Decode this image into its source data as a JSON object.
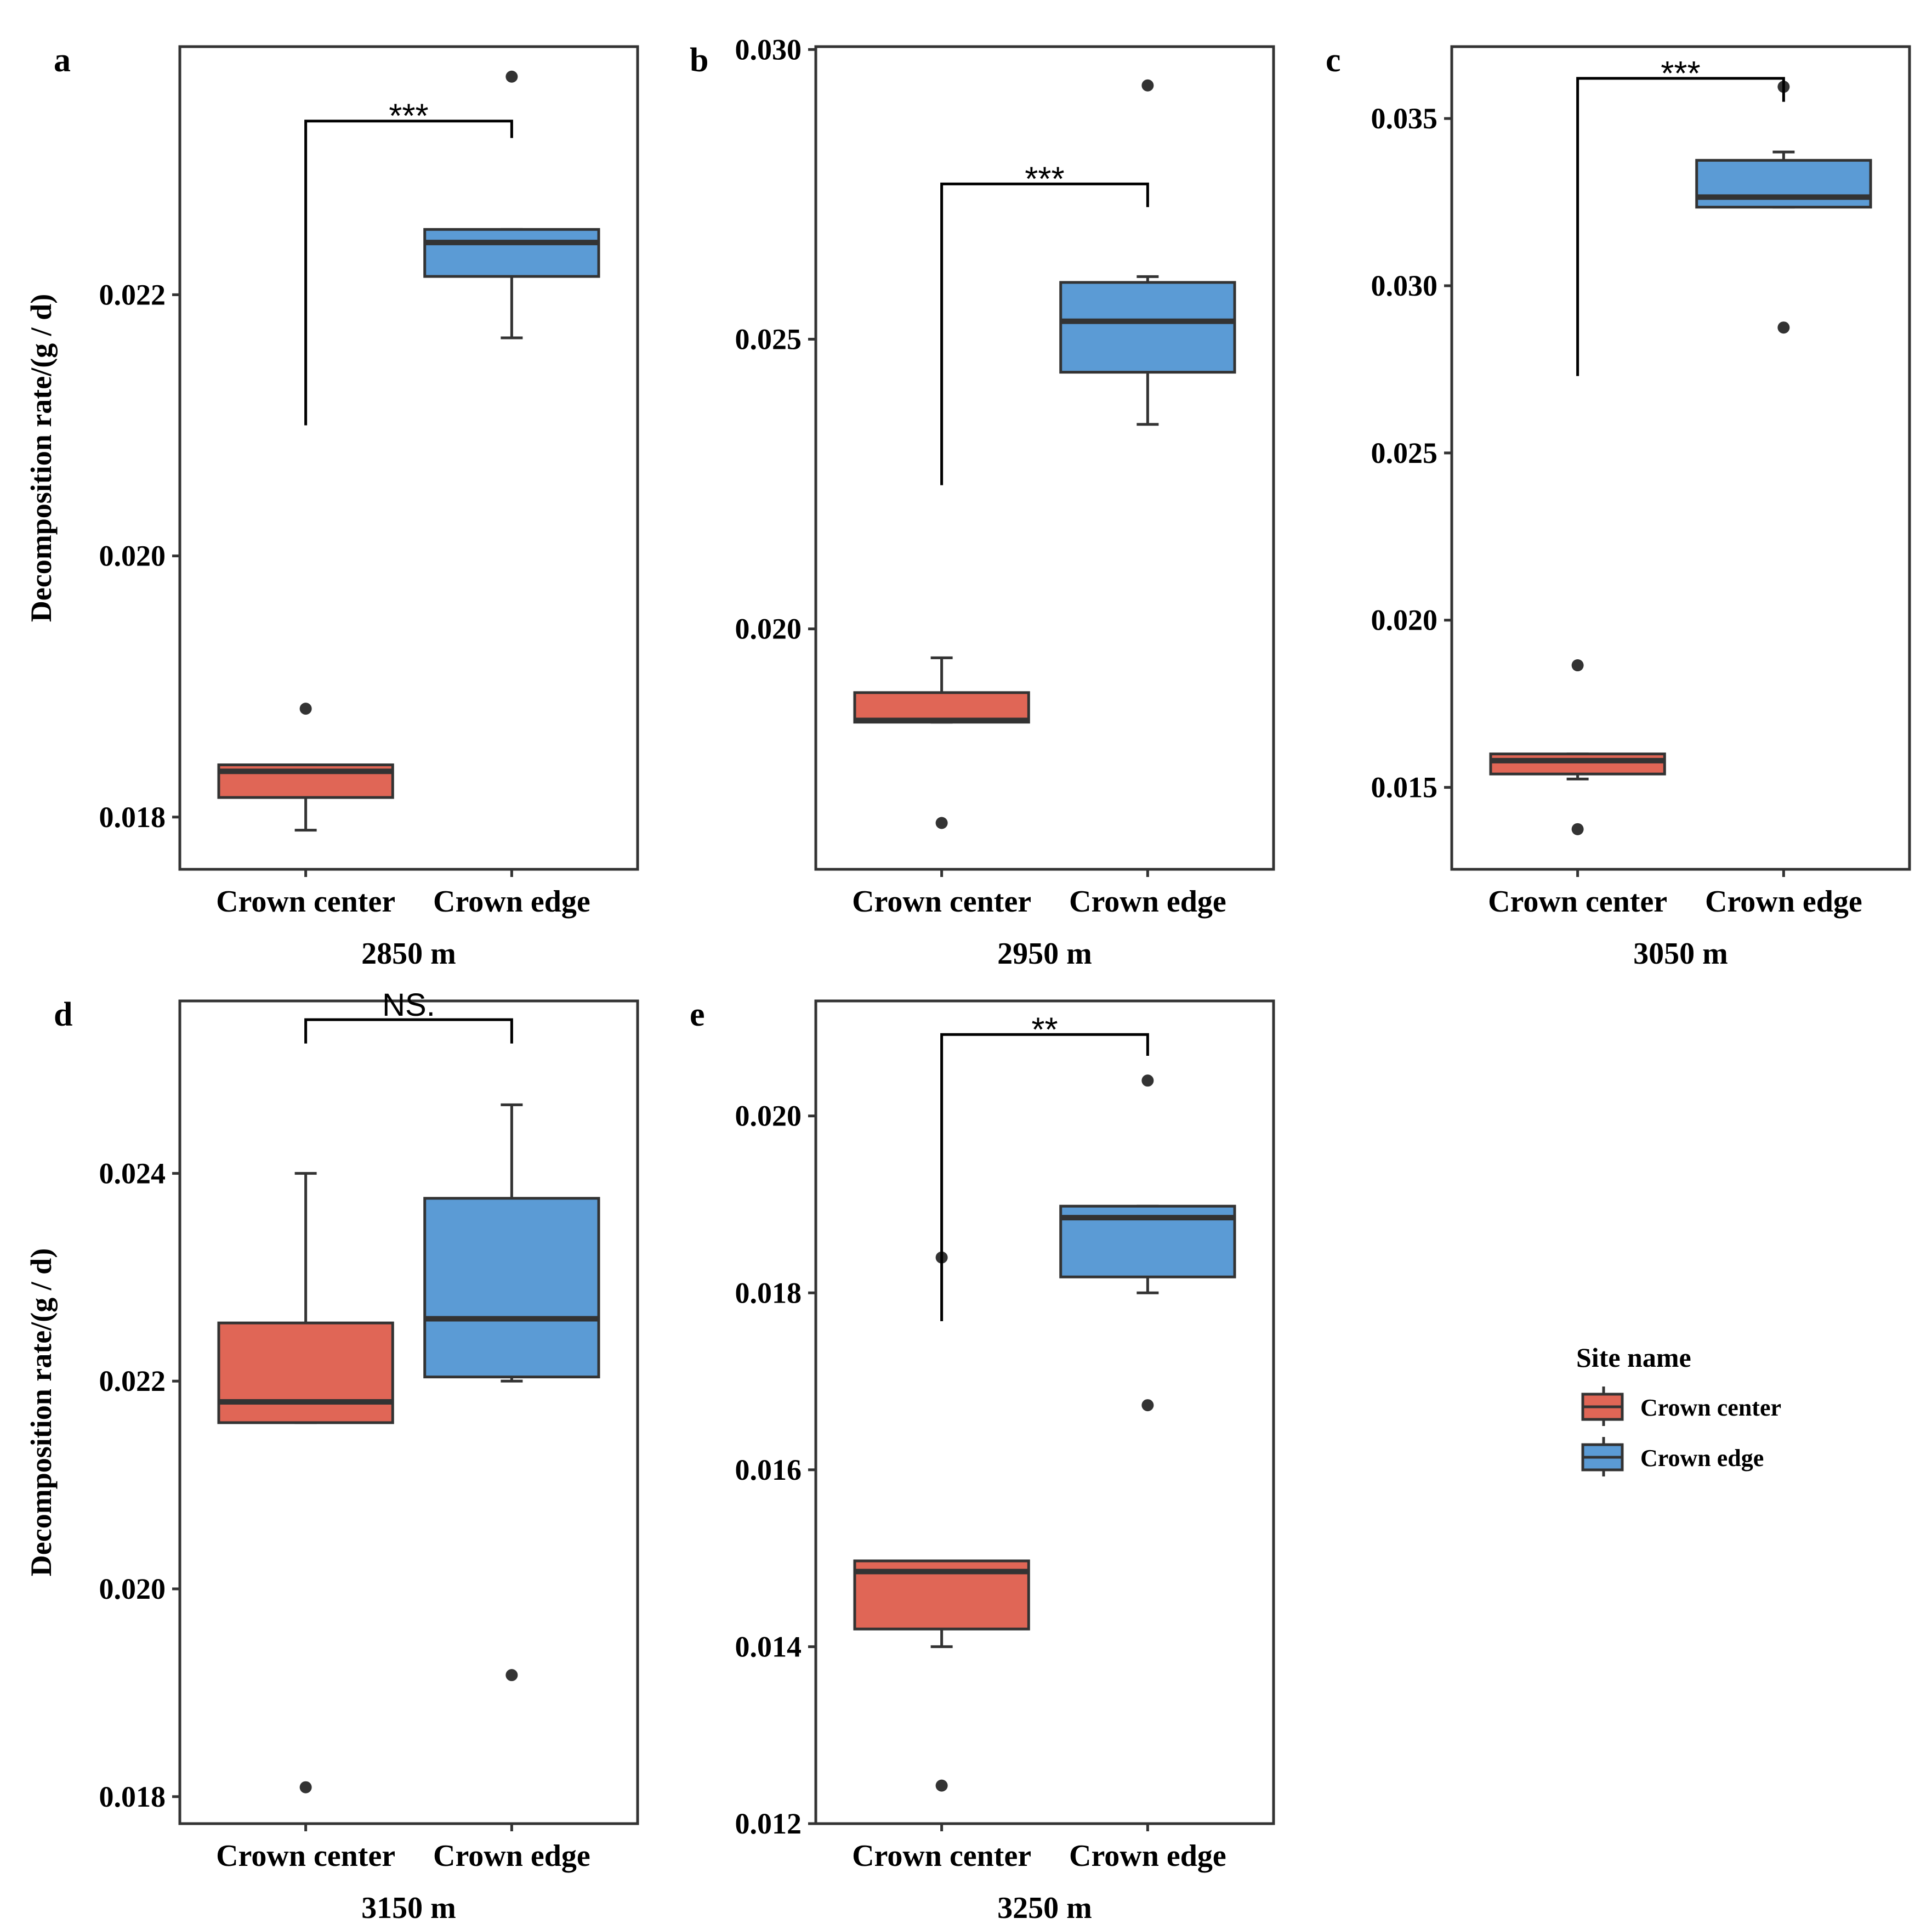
{
  "figure": {
    "ylabel": "Decomposition rate/(g / d)",
    "colors": {
      "crown_center": "#E06656",
      "crown_edge": "#5B9BD5",
      "stroke": "#333333",
      "text": "#000000"
    }
  },
  "legend": {
    "title": "Site name",
    "items": [
      {
        "label": "Crown center",
        "color": "#E06656"
      },
      {
        "label": "Crown edge",
        "color": "#5B9BD5"
      }
    ]
  },
  "chart_data": [
    {
      "type": "box",
      "panel": "a",
      "xlabel": "2850 m",
      "ylabel": "Decomposition rate/(g / d)",
      "categories": [
        "Crown center",
        "Crown edge"
      ],
      "ylim": [
        0.0176,
        0.0239
      ],
      "yticks": [
        0.018,
        0.02,
        0.022
      ],
      "ytick_labels": [
        "0.018",
        "0.020",
        "0.022"
      ],
      "boxes": [
        {
          "category": "Crown center",
          "q1": 0.01815,
          "median": 0.01835,
          "q3": 0.0184,
          "whisker_low": 0.0179,
          "whisker_high": 0.0184,
          "outliers": [
            0.01883
          ]
        },
        {
          "category": "Crown edge",
          "q1": 0.02214,
          "median": 0.0224,
          "q3": 0.0225,
          "whisker_low": 0.02167,
          "whisker_high": 0.0225,
          "outliers": [
            0.02367
          ]
        }
      ],
      "significance": {
        "label": "***",
        "left_start": 0.021,
        "right_start": 0.0232,
        "top": 0.02333
      }
    },
    {
      "type": "box",
      "panel": "b",
      "xlabel": "2950 m",
      "ylabel": "",
      "categories": [
        "Crown center",
        "Crown edge"
      ],
      "ylim": [
        0.01585,
        0.03005
      ],
      "yticks": [
        0.02,
        0.025,
        0.03
      ],
      "ytick_labels": [
        "0.020",
        "0.025",
        "0.030"
      ],
      "boxes": [
        {
          "category": "Crown center",
          "q1": 0.01839,
          "median": 0.01842,
          "q3": 0.0189,
          "whisker_low": 0.01839,
          "whisker_high": 0.0195,
          "outliers": [
            0.01665
          ]
        },
        {
          "category": "Crown edge",
          "q1": 0.02443,
          "median": 0.02531,
          "q3": 0.02598,
          "whisker_low": 0.02353,
          "whisker_high": 0.02608,
          "outliers": [
            0.02938
          ]
        }
      ],
      "significance": {
        "label": "***",
        "left_start": 0.02248,
        "right_start": 0.02728,
        "top": 0.02768
      }
    },
    {
      "type": "box",
      "panel": "c",
      "xlabel": "3050 m",
      "ylabel": "",
      "categories": [
        "Crown center",
        "Crown edge"
      ],
      "ylim": [
        0.01255,
        0.03715
      ],
      "yticks": [
        0.015,
        0.02,
        0.025,
        0.03,
        0.035
      ],
      "ytick_labels": [
        "0.015",
        "0.020",
        "0.025",
        "0.030",
        "0.035"
      ],
      "boxes": [
        {
          "category": "Crown center",
          "q1": 0.0154,
          "median": 0.0158,
          "q3": 0.016,
          "whisker_low": 0.01525,
          "whisker_high": 0.016,
          "outliers": [
            0.01865,
            0.01375
          ]
        },
        {
          "category": "Crown edge",
          "q1": 0.03235,
          "median": 0.03265,
          "q3": 0.03375,
          "whisker_low": 0.03235,
          "whisker_high": 0.034,
          "outliers": [
            0.03595,
            0.02875
          ]
        }
      ],
      "significance": {
        "label": "***",
        "left_start": 0.0273,
        "right_start": 0.0355,
        "top": 0.0362
      }
    },
    {
      "type": "box",
      "panel": "d",
      "xlabel": "3150 m",
      "ylabel": "Decomposition rate/(g / d)",
      "categories": [
        "Crown center",
        "Crown edge"
      ],
      "ylim": [
        0.01774,
        0.02566
      ],
      "yticks": [
        0.018,
        0.02,
        0.022,
        0.024
      ],
      "ytick_labels": [
        "0.018",
        "0.020",
        "0.022",
        "0.024"
      ],
      "boxes": [
        {
          "category": "Crown center",
          "q1": 0.0216,
          "median": 0.0218,
          "q3": 0.02256,
          "whisker_low": 0.0216,
          "whisker_high": 0.024,
          "outliers": [
            0.01809
          ]
        },
        {
          "category": "Crown edge",
          "q1": 0.02204,
          "median": 0.0226,
          "q3": 0.02376,
          "whisker_low": 0.022,
          "whisker_high": 0.02466,
          "outliers": [
            0.01917
          ]
        }
      ],
      "significance": {
        "label": "NS.",
        "left_start": 0.02525,
        "right_start": 0.02525,
        "top": 0.02548
      }
    },
    {
      "type": "box",
      "panel": "e",
      "xlabel": "3250 m",
      "ylabel": "",
      "categories": [
        "Crown center",
        "Crown edge"
      ],
      "ylim": [
        0.012,
        0.0213
      ],
      "yticks": [
        0.012,
        0.014,
        0.016,
        0.018,
        0.02
      ],
      "ytick_labels": [
        "0.012",
        "0.014",
        "0.016",
        "0.018",
        "0.020"
      ],
      "boxes": [
        {
          "category": "Crown center",
          "q1": 0.0142,
          "median": 0.01485,
          "q3": 0.01497,
          "whisker_low": 0.014,
          "whisker_high": 0.01497,
          "outliers": [
            0.0184,
            0.01243
          ]
        },
        {
          "category": "Crown edge",
          "q1": 0.01818,
          "median": 0.01885,
          "q3": 0.01898,
          "whisker_low": 0.018,
          "whisker_high": 0.01898,
          "outliers": [
            0.0204,
            0.01673
          ]
        }
      ],
      "significance": {
        "label": "**",
        "left_start": 0.01768,
        "right_start": 0.02068,
        "top": 0.02092
      }
    }
  ]
}
